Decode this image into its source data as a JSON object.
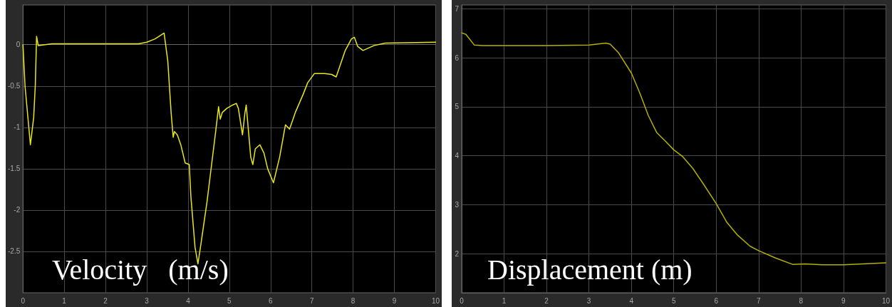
{
  "chart_data": [
    {
      "type": "line",
      "title": "Velocity   (m/s)",
      "color": "#e8e61c",
      "grid": true,
      "line_style": "solid",
      "x": [
        0,
        0.05,
        0.18,
        0.26,
        0.3,
        0.33,
        0.37,
        0.7,
        1,
        2,
        2.8,
        3.0,
        3.2,
        3.42,
        3.51,
        3.59,
        3.64,
        3.67,
        3.74,
        3.83,
        3.93,
        4.03,
        4.07,
        4.17,
        4.24,
        4.31,
        4.46,
        4.67,
        4.74,
        4.78,
        4.83,
        4.94,
        5.08,
        5.17,
        5.22,
        5.32,
        5.38,
        5.41,
        5.52,
        5.57,
        5.63,
        5.74,
        5.84,
        5.93,
        6.07,
        6.22,
        6.36,
        6.46,
        6.6,
        6.79,
        6.9,
        7.06,
        7.31,
        7.48,
        7.59,
        7.81,
        7.96,
        8.03,
        8.11,
        8.24,
        8.51,
        8.78,
        10
      ],
      "values": [
        0,
        -0.5,
        -1.21,
        -0.88,
        -0.48,
        0.1,
        -0.01,
        0.01,
        0.01,
        0.01,
        0.01,
        0.03,
        0.07,
        0.14,
        -0.2,
        -0.82,
        -1.12,
        -1.05,
        -1.09,
        -1.22,
        -1.43,
        -1.45,
        -1.84,
        -2.45,
        -2.65,
        -2.42,
        -1.9,
        -1.05,
        -0.75,
        -0.9,
        -0.82,
        -0.77,
        -0.73,
        -0.71,
        -0.77,
        -1.09,
        -0.82,
        -0.73,
        -1.36,
        -1.45,
        -1.26,
        -1.21,
        -1.31,
        -1.5,
        -1.67,
        -1.36,
        -0.97,
        -1.02,
        -0.82,
        -0.6,
        -0.46,
        -0.35,
        -0.35,
        -0.36,
        -0.39,
        -0.07,
        0.07,
        0.09,
        -0.02,
        -0.07,
        -0.01,
        0.02,
        0.03
      ],
      "xlim": [
        0,
        10
      ],
      "xticks": [
        0,
        1,
        2,
        3,
        4,
        5,
        6,
        7,
        8,
        9,
        10
      ],
      "ylim": [
        -3,
        0.48
      ],
      "yticks": [
        -2.5,
        -2,
        -1.5,
        -1,
        -0.5,
        0
      ]
    },
    {
      "type": "line",
      "title": "Displacement (m)",
      "color": "#b3b000",
      "grid": true,
      "line_style": "solid",
      "x": [
        0,
        0.1,
        0.3,
        0.5,
        2,
        3,
        3.4,
        3.5,
        3.7,
        4.0,
        4.2,
        4.4,
        4.6,
        4.8,
        5.0,
        5.2,
        5.45,
        5.7,
        6.0,
        6.25,
        6.5,
        6.8,
        7.0,
        7.4,
        7.8,
        8.1,
        8.5,
        9,
        10
      ],
      "values": [
        6.51,
        6.48,
        6.26,
        6.25,
        6.25,
        6.26,
        6.3,
        6.28,
        6.1,
        5.69,
        5.28,
        4.82,
        4.47,
        4.3,
        4.12,
        3.99,
        3.74,
        3.42,
        3.02,
        2.64,
        2.38,
        2.15,
        2.06,
        1.91,
        1.78,
        1.79,
        1.77,
        1.77,
        1.81
      ],
      "xlim": [
        0,
        10
      ],
      "xticks": [
        0,
        1,
        2,
        3,
        4,
        5,
        6,
        7,
        8,
        9,
        10
      ],
      "ylim": [
        1.2,
        7.08
      ],
      "yticks": [
        2,
        3,
        4,
        5,
        6,
        7
      ]
    }
  ]
}
